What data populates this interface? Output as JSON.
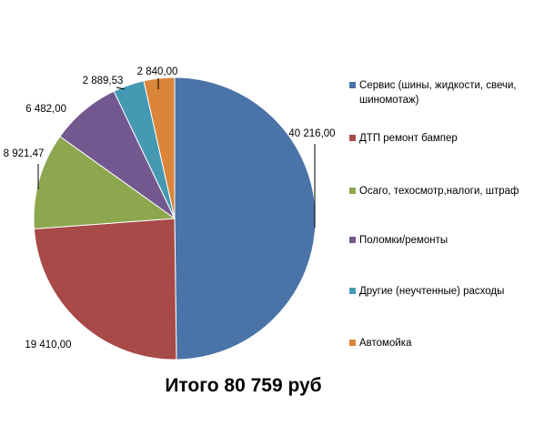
{
  "chart_data": {
    "type": "pie",
    "categories": [
      "Сервис (шины, жидкости, свечи, шиномотаж)",
      "ДТП ремонт бампер",
      "Осаго, техосмотр,налоги, штраф",
      "Поломки/ремонты",
      "Другие (неучтенные) расходы",
      "Автомойка"
    ],
    "values": [
      40216.0,
      19410.0,
      8921.47,
      6482.0,
      2889.53,
      2840.0
    ],
    "value_labels": [
      "40 216,00",
      "19 410,00",
      "8 921,47",
      "6 482,00",
      "2 889,53",
      "2 840,00"
    ],
    "colors": [
      "#4a73a8",
      "#a84a48",
      "#8da74f",
      "#73588f",
      "#4599b3",
      "#da8537"
    ],
    "legend_position": "right",
    "title": "Итого 80 759 руб"
  }
}
